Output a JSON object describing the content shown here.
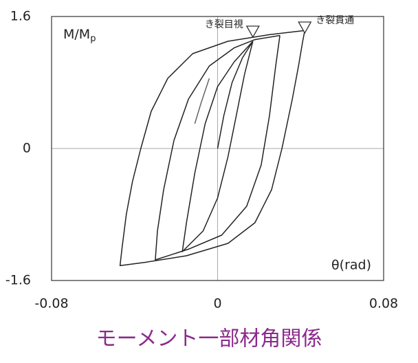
{
  "chart_data": {
    "type": "line",
    "caption": "モーメント一部材角関係",
    "ylabel": {
      "main": "M/M",
      "sub": "p"
    },
    "xlabel": "θ(rad)",
    "xlim": [
      -0.08,
      0.08
    ],
    "xticks": [
      -0.08,
      0,
      0.08
    ],
    "ylim": [
      -1.6,
      1.6
    ],
    "yticks": [
      -1.6,
      0,
      1.6
    ],
    "color": "#222222",
    "grid_color": "#aaaaaa",
    "caption_color": "#8b2a8b",
    "series": [
      {
        "color": "#222222",
        "x": [
          0.042,
          0.041,
          0.039,
          0.036,
          0.031,
          0.026,
          0.018,
          0.005,
          -0.015,
          -0.035,
          -0.047,
          -0.046,
          -0.044,
          -0.041,
          -0.037,
          -0.032,
          -0.024,
          -0.012,
          0.005,
          0.025,
          0.042
        ],
        "y": [
          1.43,
          1.3,
          1.0,
          0.6,
          0.0,
          -0.5,
          -0.9,
          -1.15,
          -1.3,
          -1.38,
          -1.42,
          -1.2,
          -0.8,
          -0.4,
          0.0,
          0.45,
          0.85,
          1.15,
          1.3,
          1.38,
          1.43
        ]
      },
      {
        "color": "#222222",
        "x": [
          0.03,
          0.028,
          0.025,
          0.021,
          0.014,
          0.002,
          -0.014,
          -0.03,
          -0.029,
          -0.026,
          -0.021,
          -0.014,
          -0.004,
          0.008,
          0.018,
          0.03
        ],
        "y": [
          1.37,
          1.0,
          0.4,
          -0.2,
          -0.7,
          -1.05,
          -1.22,
          -1.35,
          -1.0,
          -0.5,
          0.1,
          0.6,
          1.0,
          1.22,
          1.32,
          1.37
        ]
      },
      {
        "color": "#222222",
        "x": [
          0.017,
          0.013,
          0.009,
          0.005,
          0.0,
          -0.007,
          -0.017,
          -0.015,
          -0.011,
          -0.006,
          0.0,
          0.008,
          0.017
        ],
        "y": [
          1.3,
          0.9,
          0.4,
          -0.1,
          -0.6,
          -1.0,
          -1.25,
          -0.9,
          -0.3,
          0.3,
          0.75,
          1.05,
          1.3
        ]
      },
      {
        "color": "#222222",
        "x": [
          0.0,
          0.003,
          0.007,
          0.012,
          0.017
        ],
        "y": [
          0.0,
          0.4,
          0.8,
          1.1,
          1.3
        ]
      },
      {
        "color": "#666666",
        "x": [
          -0.011,
          -0.008,
          -0.004
        ],
        "y": [
          0.3,
          0.55,
          0.85
        ]
      }
    ],
    "annotations": [
      {
        "text": "き裂目視",
        "x": 0.017,
        "y": 1.4
      },
      {
        "text": "き裂貫通",
        "x": 0.042,
        "y": 1.45
      }
    ]
  }
}
